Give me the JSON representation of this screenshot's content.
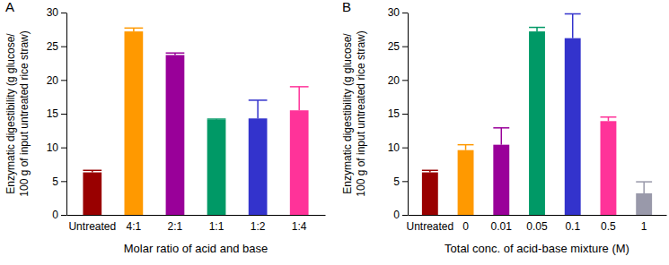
{
  "chart_data": [
    {
      "type": "bar",
      "title": "A",
      "xlabel": "Molar ratio of acid and base",
      "ylabel": [
        "Enzymatic digestibility (g glucose/",
        "100 g of input untreated rice straw)"
      ],
      "categories": [
        "Untreated",
        "4:1",
        "2:1",
        "1:1",
        "1:2",
        "1:4"
      ],
      "values": [
        6.3,
        27.2,
        23.7,
        14.1,
        14.3,
        15.5
      ],
      "errors": [
        0.3,
        0.5,
        0.3,
        0.1,
        2.7,
        3.5
      ],
      "colors": [
        "#990000",
        "#ff9900",
        "#990099",
        "#009966",
        "#3333cc",
        "#ff3399"
      ],
      "ylim": [
        0,
        30
      ],
      "yticks": [
        0,
        5,
        10,
        15,
        20,
        25,
        30
      ]
    },
    {
      "type": "bar",
      "title": "B",
      "xlabel": "Total conc. of acid-base mixture (M)",
      "ylabel": [
        "Enzymatic digestibility (g glucose/",
        "100 g of input untreated rice straw)"
      ],
      "categories": [
        "Untreated",
        "0",
        "0.01",
        "0.05",
        "0.1",
        "0.5",
        "1"
      ],
      "values": [
        6.3,
        9.6,
        10.4,
        27.2,
        26.2,
        13.9,
        3.2
      ],
      "errors": [
        0.3,
        0.8,
        2.5,
        0.6,
        3.6,
        0.6,
        1.7
      ],
      "colors": [
        "#990000",
        "#ff9900",
        "#990099",
        "#009966",
        "#3333cc",
        "#ff3399",
        "#9999aa"
      ],
      "ylim": [
        0,
        30
      ],
      "yticks": [
        0,
        5,
        10,
        15,
        20,
        25,
        30
      ]
    }
  ]
}
